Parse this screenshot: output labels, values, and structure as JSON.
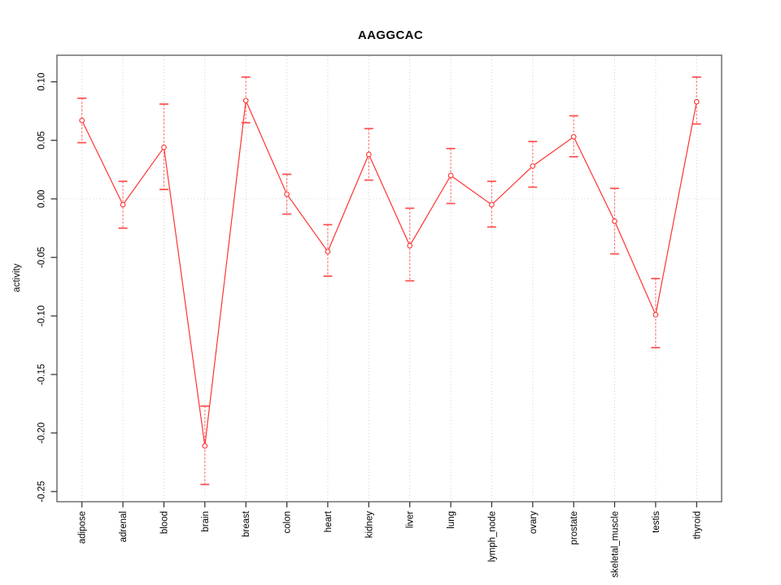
{
  "figure": {
    "title": "AAGGCAC",
    "ylabel": "activity"
  },
  "colors": {
    "series_line": "#ff3333",
    "marker_stroke": "#ff3333",
    "error_bar_stem": "#ff6b6b",
    "error_bar_cap": "#ff4d4d",
    "grid": "#d2d2d2",
    "frame": "#6f6f6f",
    "tick": "#2b2b2b",
    "text": "#000000",
    "background": "#ffffff"
  },
  "chart_data": {
    "type": "line",
    "title": "AAGGCAC",
    "xlabel": "",
    "ylabel": "activity",
    "legend": "none",
    "marker": "open-circle",
    "error_bars": true,
    "grid": {
      "vertical_per_category": true,
      "horizontal_zero_line": true,
      "style": "dotted-lightgray"
    },
    "ylim": [
      -0.258,
      0.122
    ],
    "yticks": [
      {
        "label": "0.10",
        "value": 0.1
      },
      {
        "label": "0.05",
        "value": 0.05
      },
      {
        "label": "0.00",
        "value": 0.0
      },
      {
        "label": "-0.05",
        "value": -0.05
      },
      {
        "label": "-0.10",
        "value": -0.1
      },
      {
        "label": "-0.15",
        "value": -0.15
      },
      {
        "label": "-0.20",
        "value": -0.2
      },
      {
        "label": "-0.25",
        "value": -0.25
      }
    ],
    "categories": [
      "adipose",
      "adrenal",
      "blood",
      "brain",
      "breast",
      "colon",
      "heart",
      "kidney",
      "liver",
      "lung",
      "lymph_node",
      "ovary",
      "prostate",
      "skeletal_muscle",
      "testis",
      "thyroid"
    ],
    "series": [
      {
        "name": "activity",
        "values": [
          0.067,
          -0.005,
          0.044,
          -0.211,
          0.084,
          0.004,
          -0.045,
          0.038,
          -0.04,
          0.02,
          -0.005,
          0.028,
          0.053,
          -0.019,
          -0.099,
          0.083
        ],
        "err_low": [
          0.048,
          -0.025,
          0.008,
          -0.244,
          0.065,
          -0.013,
          -0.066,
          0.016,
          -0.07,
          -0.004,
          -0.024,
          0.01,
          0.036,
          -0.047,
          -0.127,
          0.064
        ],
        "err_high": [
          0.086,
          0.015,
          0.081,
          -0.177,
          0.104,
          0.021,
          -0.022,
          0.06,
          -0.008,
          0.043,
          0.015,
          0.049,
          0.071,
          0.009,
          -0.068,
          0.104
        ]
      }
    ]
  }
}
